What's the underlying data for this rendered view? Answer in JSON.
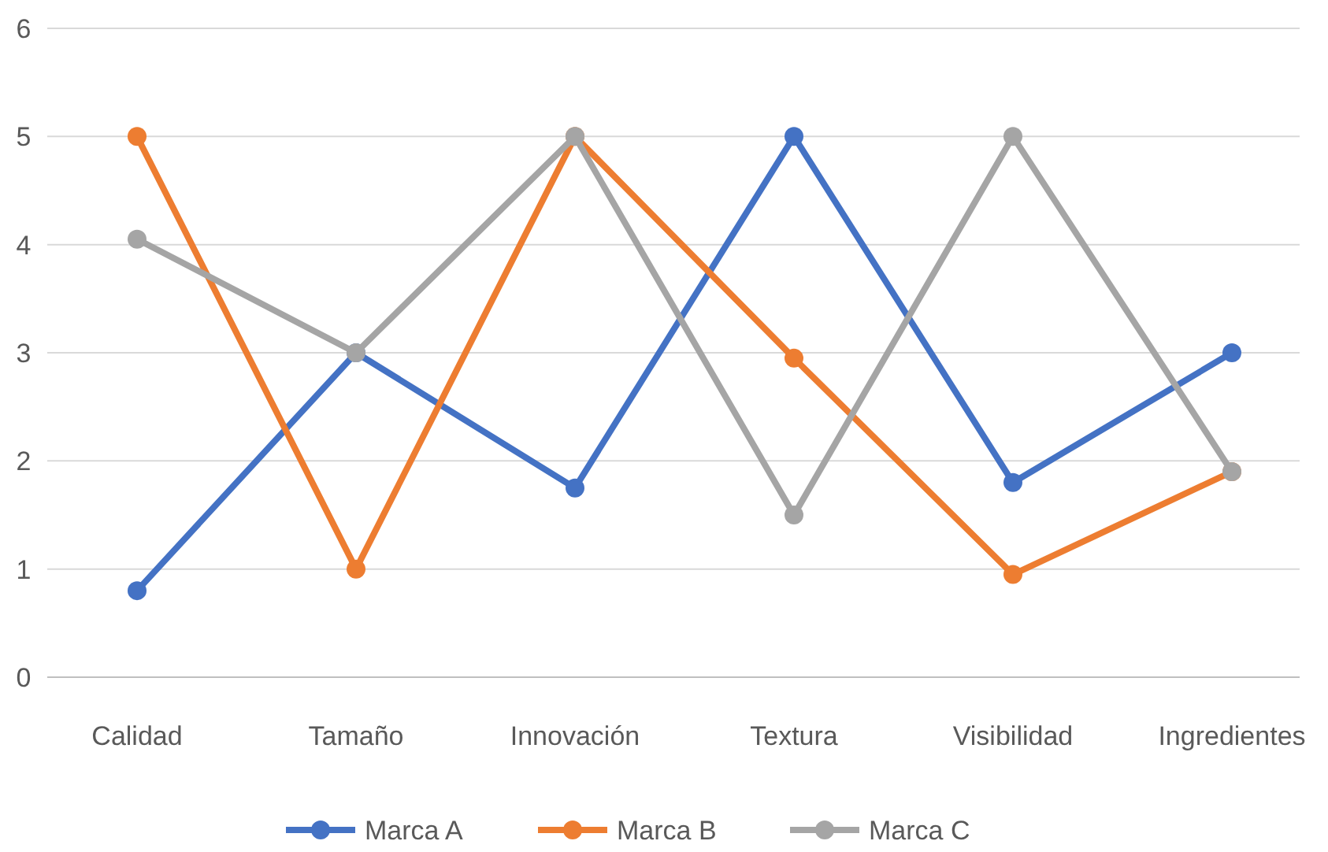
{
  "chart_data": {
    "type": "line",
    "categories": [
      "Calidad",
      "Tamaño",
      "Innovación",
      "Textura",
      "Visibilidad",
      "Ingredientes"
    ],
    "series": [
      {
        "name": "Marca A",
        "color": "#4472c4",
        "values": [
          0.8,
          3,
          1.75,
          5,
          1.8,
          3
        ]
      },
      {
        "name": "Marca B",
        "color": "#ed7d31",
        "values": [
          5,
          1,
          5,
          2.95,
          0.95,
          1.9
        ]
      },
      {
        "name": "Marca C",
        "color": "#a5a5a5",
        "values": [
          4.05,
          3,
          5,
          1.5,
          5,
          1.9
        ]
      }
    ],
    "ylim": [
      0,
      6
    ],
    "yticks": [
      0,
      1,
      2,
      3,
      4,
      5,
      6
    ],
    "grid": "y",
    "legend": "bottom",
    "marker": "circle",
    "line_style": "solid"
  }
}
